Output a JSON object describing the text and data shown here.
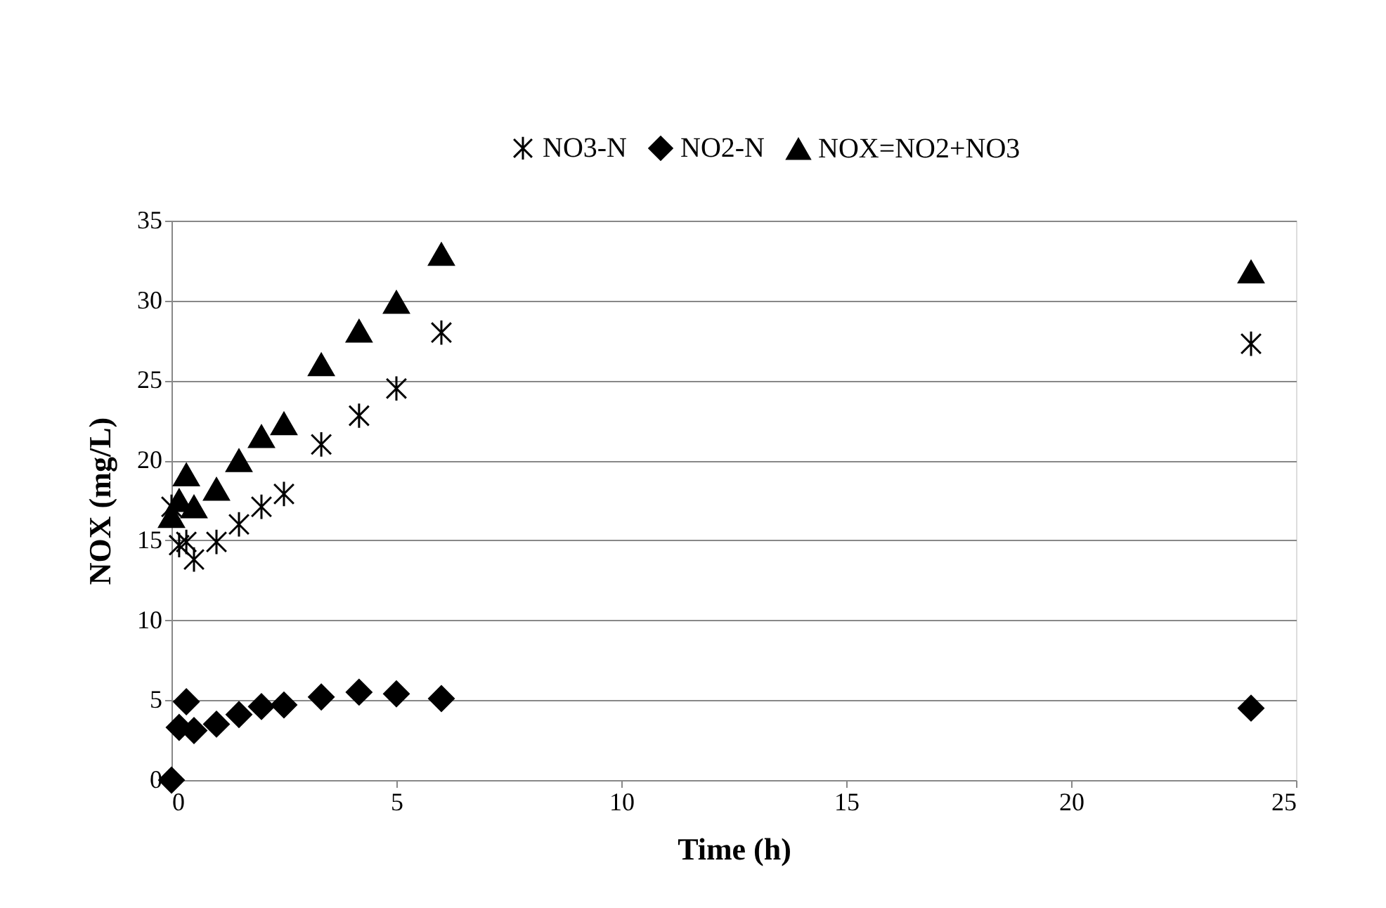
{
  "chart_data": {
    "type": "scatter",
    "xlabel": "Time (h)",
    "ylabel": "NOX (mg/L)",
    "x": [
      0,
      0.17,
      0.33,
      0.5,
      1,
      1.5,
      2,
      2.5,
      3.33,
      4.17,
      5,
      6,
      24
    ],
    "series": [
      {
        "name": "NO3-N",
        "color": "#000000",
        "marker": "cross",
        "values": [
          17.1,
          14.7,
          14.9,
          13.8,
          14.9,
          16.0,
          17.1,
          17.9,
          21.0,
          22.8,
          24.5,
          28.0,
          27.3
        ]
      },
      {
        "name": "NO2-N",
        "color": "#000000",
        "marker": "diamond",
        "values": [
          0,
          3.3,
          4.9,
          3.1,
          3.5,
          4.1,
          4.6,
          4.7,
          5.2,
          5.5,
          5.4,
          5.1,
          4.5
        ]
      },
      {
        "name": "NOX=NO2+NO3",
        "color": "#000000",
        "marker": "triangle",
        "values": [
          16.5,
          17.5,
          19.1,
          17.1,
          18.2,
          20.0,
          21.5,
          22.3,
          26.0,
          28.1,
          29.9,
          32.9,
          31.8
        ]
      }
    ],
    "xlim": [
      0,
      25
    ],
    "xticks": [
      0,
      5,
      10,
      15,
      20,
      25
    ],
    "ylim": [
      0,
      35
    ],
    "yticks": [
      0,
      5,
      10,
      15,
      20,
      25,
      30,
      35
    ],
    "grid": "y",
    "legend": "top"
  }
}
